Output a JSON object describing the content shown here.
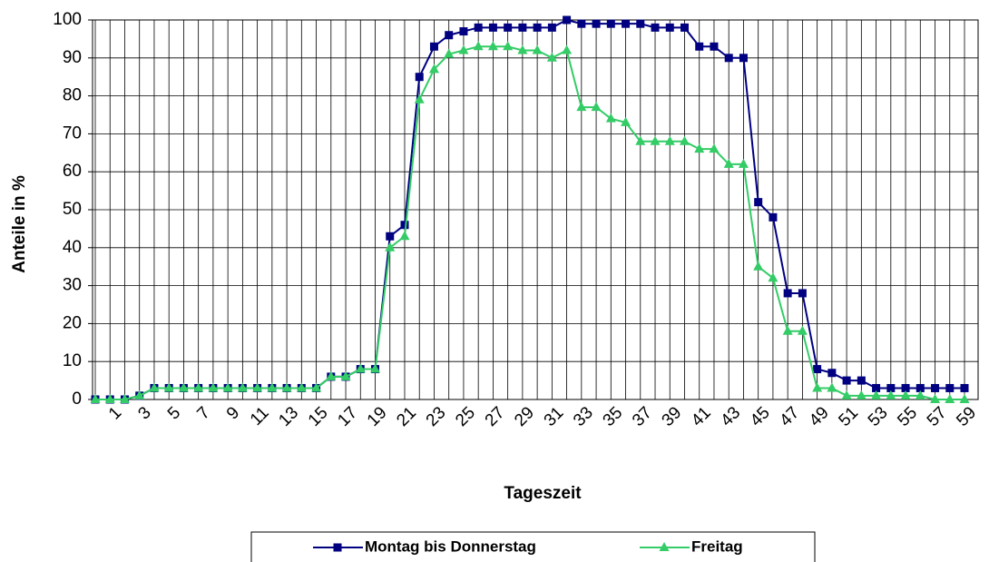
{
  "chart_data": {
    "type": "line",
    "x_label": "Tageszeit",
    "y_label": "Anteile in %",
    "categories": [
      null,
      "1",
      null,
      "3",
      null,
      "5",
      null,
      "7",
      null,
      "9",
      null,
      "11",
      null,
      "13",
      null,
      "15",
      null,
      "17",
      null,
      "19",
      null,
      "21",
      null,
      "23",
      null,
      "25",
      null,
      "27",
      null,
      "29",
      null,
      "31",
      null,
      "33",
      null,
      "35",
      null,
      "37",
      null,
      "39",
      null,
      "41",
      null,
      "43",
      null,
      "45",
      null,
      "47",
      null,
      "49",
      null,
      "51",
      null,
      "53",
      null,
      "55",
      null,
      "57",
      null,
      "59"
    ],
    "series": [
      {
        "name": "Montag bis Donnerstag",
        "color": "#000080",
        "marker": "square",
        "values": [
          0,
          0,
          0,
          1,
          3,
          3,
          3,
          3,
          3,
          3,
          3,
          3,
          3,
          3,
          3,
          3,
          6,
          6,
          8,
          8,
          43,
          46,
          85,
          93,
          96,
          97,
          98,
          98,
          98,
          98,
          98,
          98,
          100,
          99,
          99,
          99,
          99,
          99,
          98,
          98,
          98,
          93,
          93,
          90,
          90,
          52,
          48,
          28,
          28,
          8,
          7,
          5,
          5,
          3,
          3,
          3,
          3,
          3,
          3,
          3
        ]
      },
      {
        "name": "Freitag",
        "color": "#33cc66",
        "marker": "triangle",
        "values": [
          0,
          0,
          0,
          1,
          3,
          3,
          3,
          3,
          3,
          3,
          3,
          3,
          3,
          3,
          3,
          3,
          6,
          6,
          8,
          8,
          40,
          43,
          79,
          87,
          91,
          92,
          93,
          93,
          93,
          92,
          92,
          90,
          92,
          77,
          77,
          74,
          73,
          68,
          68,
          68,
          68,
          66,
          66,
          62,
          62,
          35,
          32,
          18,
          18,
          3,
          3,
          1,
          1,
          1,
          1,
          1,
          1,
          0,
          0,
          0
        ]
      }
    ],
    "ylim": [
      0,
      100
    ],
    "yticks": [
      0,
      10,
      20,
      30,
      40,
      50,
      60,
      70,
      80,
      90,
      100
    ],
    "grid": true
  }
}
